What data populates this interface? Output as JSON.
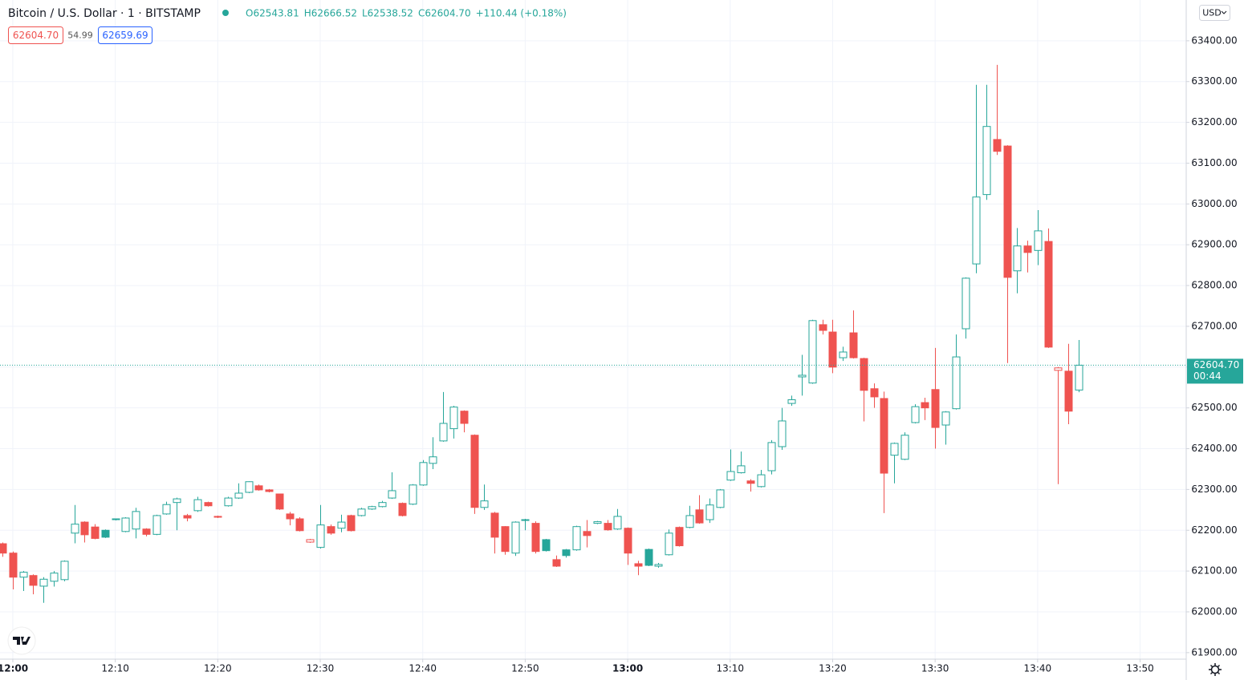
{
  "chart_data": {
    "type": "candlestick",
    "title": "Bitcoin / U.S. Dollar · 1 · BITSTAMP",
    "ohlc_text": [
      "O62543.81",
      "H62666.52",
      "L62538.52",
      "C62604.70",
      "+110.44 (+0.18%)"
    ],
    "quote": {
      "bid": "62604.70",
      "spread": 54.99,
      "ask": "62659.69"
    },
    "currency": "USD",
    "last_price_label": "62604.70",
    "countdown": "00:44",
    "up_color": "#26a69a",
    "down_color": "#ef5350",
    "grid": true,
    "xlim": [
      "11:58:45",
      "13:54:30"
    ],
    "xticks": [
      "12:00",
      "12:10",
      "12:20",
      "12:30",
      "12:40",
      "12:50",
      "13:00",
      "13:10",
      "13:20",
      "13:30",
      "13:40",
      "13:50"
    ],
    "ylim": [
      61884,
      63500
    ],
    "yticks": [
      {
        "value": 61900,
        "label": "61900.00"
      },
      {
        "value": 62000,
        "label": "62000.00"
      },
      {
        "value": 62100,
        "label": "62100.00"
      },
      {
        "value": 62200,
        "label": "62200.00"
      },
      {
        "value": 62300,
        "label": "62300.00"
      },
      {
        "value": 62400,
        "label": "62400.00"
      },
      {
        "value": 62500,
        "label": "62500.00"
      },
      {
        "value": 62600,
        "label": "62600.00"
      },
      {
        "value": 62700,
        "label": "62700.00"
      },
      {
        "value": 62800,
        "label": "62800.00"
      },
      {
        "value": 62900,
        "label": "62900.00"
      },
      {
        "value": 63000,
        "label": "63000.00"
      },
      {
        "value": 63100,
        "label": "63100.00"
      },
      {
        "value": 63200,
        "label": "63200.00"
      },
      {
        "value": 63300,
        "label": "63300.00"
      },
      {
        "value": 63400,
        "label": "63400.00"
      }
    ],
    "x": [
      "11:59",
      "12:00",
      "12:01",
      "12:02",
      "12:03",
      "12:04",
      "12:05",
      "12:06",
      "12:07",
      "12:08",
      "12:09",
      "12:10",
      "12:11",
      "12:12",
      "12:13",
      "12:14",
      "12:15",
      "12:16",
      "12:17",
      "12:18",
      "12:19",
      "12:20",
      "12:21",
      "12:22",
      "12:23",
      "12:24",
      "12:25",
      "12:26",
      "12:27",
      "12:28",
      "12:29",
      "12:30",
      "12:31",
      "12:32",
      "12:33",
      "12:34",
      "12:35",
      "12:36",
      "12:37",
      "12:38",
      "12:39",
      "12:40",
      "12:41",
      "12:42",
      "12:43",
      "12:44",
      "12:45",
      "12:46",
      "12:47",
      "12:48",
      "12:49",
      "12:50",
      "12:51",
      "12:52",
      "12:53",
      "12:54",
      "12:55",
      "12:56",
      "12:57",
      "12:58",
      "12:59",
      "13:00",
      "13:01",
      "13:02",
      "13:03",
      "13:04",
      "13:05",
      "13:06",
      "13:07",
      "13:08",
      "13:09",
      "13:10",
      "13:11",
      "13:12",
      "13:13",
      "13:14",
      "13:15",
      "13:16",
      "13:17",
      "13:18",
      "13:19",
      "13:20",
      "13:21",
      "13:22",
      "13:23",
      "13:24",
      "13:25",
      "13:26",
      "13:27",
      "13:28",
      "13:29",
      "13:30",
      "13:31",
      "13:32",
      "13:33",
      "13:34",
      "13:35",
      "13:36",
      "13:37",
      "13:38",
      "13:39",
      "13:40",
      "13:41",
      "13:42",
      "13:43",
      "13:44"
    ],
    "open": [
      62167,
      62144,
      62085,
      62089,
      62063,
      62075,
      62079,
      62193,
      62220,
      62208,
      62200,
      62226,
      62197,
      62203,
      62203,
      62190,
      62240,
      62268,
      62236,
      62248,
      62268,
      62234,
      62260,
      62279,
      62293,
      62309,
      62299,
      62289,
      62240,
      62228,
      62171,
      62158,
      62209,
      62205,
      62236,
      62236,
      62252,
      62258,
      62279,
      62266,
      62264,
      62311,
      62364,
      62419,
      62449,
      62492,
      62433,
      62256,
      62242,
      62209,
      62144,
      62224,
      62217,
      62177,
      62128,
      62152,
      62152,
      62197,
      62217,
      62217,
      62203,
      62205,
      62118,
      62153,
      62112,
      62140,
      62207,
      62207,
      62250,
      62226,
      62256,
      62323,
      62341,
      62321,
      62307,
      62346,
      62405,
      62511,
      62576,
      62561,
      62704,
      62686,
      62623,
      62684,
      62621,
      62547,
      62523,
      62384,
      62374,
      62464,
      62513,
      62545,
      62458,
      62498,
      62694,
      62853,
      63023,
      63158,
      63142,
      62836,
      62897,
      62886,
      62908,
      62592,
      62590,
      62543.81
    ],
    "high": [
      62170,
      62148,
      62100,
      62092,
      62085,
      62100,
      62126,
      62262,
      62222,
      62215,
      62202,
      62228,
      62232,
      62255,
      62205,
      62238,
      62270,
      62280,
      62240,
      62282,
      62270,
      62236,
      62282,
      62315,
      62320,
      62312,
      62301,
      62290,
      62245,
      62232,
      62179,
      62262,
      62214,
      62238,
      62238,
      62255,
      62260,
      62272,
      62342,
      62268,
      62313,
      62372,
      62428,
      62539,
      62505,
      62494,
      62435,
      62312,
      62245,
      62210,
      62222,
      62228,
      62222,
      62179,
      62138,
      62154,
      62211,
      62225,
      62223,
      62225,
      62252,
      62207,
      62125,
      62155,
      62120,
      62202,
      62209,
      62260,
      62286,
      62278,
      62301,
      62398,
      62393,
      62325,
      62348,
      62421,
      62500,
      62530,
      62630,
      62716,
      62716,
      62716,
      62650,
      62739,
      62623,
      62560,
      62540,
      62415,
      62440,
      62509,
      62525,
      62647,
      62492,
      62680,
      62820,
      63292,
      63292,
      63341,
      63144,
      62941,
      62910,
      62985,
      62940,
      62600,
      62657,
      62666.52
    ],
    "low": [
      62135,
      62055,
      62051,
      62043,
      62022,
      62062,
      62075,
      62168,
      62170,
      62178,
      62181,
      62224,
      62195,
      62180,
      62185,
      62188,
      62238,
      62200,
      62222,
      62245,
      62258,
      62230,
      62258,
      62277,
      62291,
      62297,
      62293,
      62250,
      62212,
      62197,
      62169,
      62155,
      62189,
      62195,
      62197,
      62234,
      62250,
      62256,
      62277,
      62234,
      62262,
      62309,
      62350,
      62417,
      62425,
      62440,
      62240,
      62250,
      62143,
      62140,
      62137,
      62200,
      62143,
      62148,
      62110,
      62133,
      62150,
      62158,
      62215,
      62199,
      62201,
      62115,
      62090,
      62112,
      62108,
      62138,
      62160,
      62205,
      62216,
      62218,
      62254,
      62321,
      62339,
      62295,
      62305,
      62337,
      62397,
      62505,
      62530,
      62559,
      62680,
      62585,
      62615,
      62621,
      62467,
      62500,
      62242,
      62315,
      62372,
      62462,
      62470,
      62400,
      62410,
      62496,
      62670,
      62830,
      63010,
      63120,
      62610,
      62781,
      62832,
      62850,
      62647,
      62313,
      62460,
      62538.52
    ],
    "close": [
      62144,
      62085,
      62097,
      62065,
      62080,
      62095,
      62124,
      62215,
      62189,
      62180,
      62183,
      62228,
      62230,
      62246,
      62190,
      62236,
      62263,
      62277,
      62230,
      62275,
      62260,
      62232,
      62279,
      62291,
      62319,
      62299,
      62295,
      62252,
      62228,
      62199,
      62177,
      62213,
      62193,
      62220,
      62199,
      62252,
      62258,
      62268,
      62297,
      62236,
      62311,
      62366,
      62380,
      62462,
      62502,
      62462,
      62256,
      62272,
      62183,
      62148,
      62220,
      62226,
      62148,
      62150,
      62112,
      62138,
      62209,
      62187,
      62221,
      62201,
      62234,
      62144,
      62112,
      62114,
      62116,
      62193,
      62162,
      62236,
      62218,
      62262,
      62299,
      62344,
      62358,
      62315,
      62336,
      62415,
      62468,
      62520,
      62580,
      62714,
      62690,
      62600,
      62637,
      62623,
      62543,
      62527,
      62340,
      62413,
      62433,
      62503,
      62500,
      62452,
      62490,
      62625,
      62818,
      63017,
      63190,
      63129,
      62820,
      62897,
      62881,
      62934,
      62649,
      62598,
      62492,
      62604.7
    ]
  }
}
